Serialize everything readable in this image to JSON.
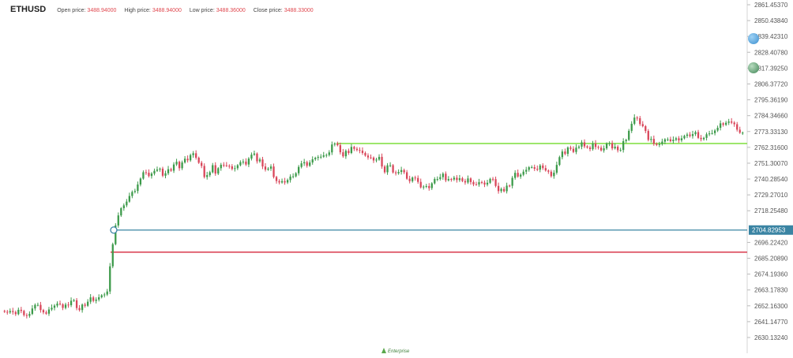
{
  "header": {
    "symbol": "ETHUSD",
    "open_label": "Open price:",
    "open_value": "3488.94000",
    "high_label": "High price:",
    "high_value": "3488.94000",
    "low_label": "Low price:",
    "low_value": "3488.36000",
    "close_label": "Close price:",
    "close_value": "3488.33000"
  },
  "colors": {
    "bull": "#3c9a4a",
    "bear": "#d9465a",
    "h_green": "#7dde3c",
    "h_blue": "#3a84a3",
    "h_red": "#d93a4c",
    "tag_bg": "#3a84a3",
    "grid_axis": "#d4d4d4"
  },
  "logo_text": "Enterprise",
  "chart_data": {
    "type": "candlestick",
    "symbol": "ETHUSD",
    "ylim": [
      2628,
      2862
    ],
    "y_ticks": [
      "2861.45370",
      "2850.43840",
      "2839.42310",
      "2828.40780",
      "2817.39250",
      "2806.37720",
      "2795.36190",
      "2784.34660",
      "2773.33130",
      "2762.31600",
      "2751.30070",
      "2740.28540",
      "2729.27010",
      "2718.25480",
      "2704.82953",
      "2696.22420",
      "2685.20890",
      "2674.19360",
      "2663.17830",
      "2652.16300",
      "2641.14770",
      "2630.13240"
    ],
    "y_tick_values": [
      2861.4537,
      2850.4384,
      2839.4231,
      2828.4078,
      2817.3925,
      2806.3772,
      2795.3619,
      2784.3466,
      2773.3313,
      2762.316,
      2751.3007,
      2740.2854,
      2729.2701,
      2718.2548,
      2704.82953,
      2696.2242,
      2685.2089,
      2674.1936,
      2663.1783,
      2652.163,
      2641.1477,
      2630.1324
    ],
    "horizontal_lines": [
      {
        "level": 2765.0,
        "color": "green"
      },
      {
        "level": 2704.82953,
        "color": "blue",
        "tag": "2704.82953"
      },
      {
        "level": 2689.5,
        "color": "red"
      }
    ],
    "series": {
      "close": [
        2648.0,
        2647.6,
        2648.5,
        2647.8,
        2646.4,
        2649.4,
        2648.6,
        2645.7,
        2645.2,
        2646.5,
        2650.3,
        2652.8,
        2652.8,
        2649.2,
        2647.6,
        2646.7,
        2649.6,
        2650.8,
        2652.3,
        2653.7,
        2653.2,
        2650.7,
        2653.0,
        2652.6,
        2655.7,
        2656.0,
        2650.6,
        2649.2,
        2653.0,
        2652.2,
        2655.0,
        2658.0,
        2655.6,
        2656.5,
        2658.1,
        2659.5,
        2660.0,
        2662.1,
        2679.6,
        2695.0,
        2708.0,
        2715.0,
        2720.0,
        2722.0,
        2724.6,
        2728.5,
        2731.3,
        2732.0,
        2736.5,
        2740.6,
        2745.0,
        2744.7,
        2742.4,
        2744.1,
        2746.0,
        2746.9,
        2747.5,
        2742.6,
        2744.3,
        2747.1,
        2746.1,
        2750.4,
        2752.3,
        2747.8,
        2751.8,
        2754.4,
        2753.3,
        2756.9,
        2758.2,
        2755.1,
        2751.6,
        2749.4,
        2741.7,
        2743.0,
        2745.0,
        2749.9,
        2744.1,
        2747.8,
        2750.2,
        2749.8,
        2749.5,
        2749.1,
        2747.3,
        2747.8,
        2749.9,
        2752.0,
        2752.4,
        2750.4,
        2754.5,
        2757.2,
        2758.0,
        2752.6,
        2753.9,
        2749.0,
        2746.8,
        2747.5,
        2749.0,
        2741.7,
        2738.9,
        2737.9,
        2738.8,
        2737.9,
        2739.6,
        2742.0,
        2742.2,
        2744.3,
        2748.7,
        2751.2,
        2752.0,
        2749.5,
        2751.8,
        2754.0,
        2755.0,
        2755.6,
        2755.8,
        2756.8,
        2757.0,
        2758.8,
        2764.3,
        2765.0,
        2763.8,
        2758.9,
        2756.1,
        2759.9,
        2758.4,
        2762.6,
        2761.3,
        2760.5,
        2760.0,
        2758.4,
        2756.6,
        2755.3,
        2755.2,
        2753.2,
        2753.8,
        2755.7,
        2749.0,
        2745.0,
        2749.8,
        2749.9,
        2744.9,
        2744.3,
        2745.2,
        2746.5,
        2745.0,
        2740.5,
        2738.8,
        2741.3,
        2741.0,
        2738.3,
        2734.5,
        2735.0,
        2735.4,
        2734.0,
        2737.3,
        2740.3,
        2740.3,
        2741.6,
        2744.0,
        2739.4,
        2740.3,
        2740.0,
        2741.2,
        2739.6,
        2740.8,
        2738.9,
        2737.9,
        2740.7,
        2738.2,
        2736.6,
        2736.5,
        2738.1,
        2737.8,
        2736.5,
        2737.7,
        2740.4,
        2740.2,
        2735.5,
        2731.9,
        2733.4,
        2731.8,
        2735.7,
        2735.6,
        2741.1,
        2744.6,
        2742.0,
        2743.3,
        2745.4,
        2746.7,
        2748.5,
        2748.5,
        2747.4,
        2746.8,
        2749.7,
        2747.9,
        2746.2,
        2745.4,
        2742.3,
        2744.7,
        2750.1,
        2755.5,
        2759.4,
        2757.8,
        2762.2,
        2761.3,
        2759.1,
        2762.1,
        2762.8,
        2765.8,
        2763.0,
        2762.2,
        2761.1,
        2765.0,
        2762.6,
        2762.1,
        2760.2,
        2761.6,
        2765.0,
        2765.2,
        2761.6,
        2762.8,
        2760.3,
        2760.5,
        2766.6,
        2767.5,
        2773.8,
        2778.7,
        2783.0,
        2782.6,
        2778.5,
        2777.0,
        2773.7,
        2767.5,
        2768.2,
        2764.7,
        2764.0,
        2764.6,
        2766.3,
        2767.9,
        2767.9,
        2766.6,
        2767.6,
        2768.6,
        2767.2,
        2768.6,
        2770.3,
        2771.2,
        2770.2,
        2771.5,
        2772.9,
        2768.9,
        2768.0,
        2768.9,
        2771.4,
        2772.0,
        2772.2,
        2774.0,
        2775.9,
        2779.0,
        2778.0,
        2779.4,
        2780.3,
        2779.5,
        2778.4,
        2774.6,
        2772.5,
        2772.5
      ]
    }
  }
}
